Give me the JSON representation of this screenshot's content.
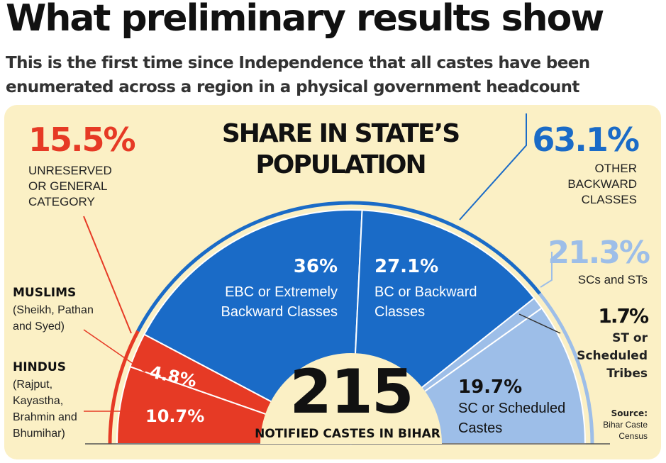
{
  "header": {
    "title": "What preliminary results show",
    "subtitle_line1": "This is the first time since Independence that all castes have been",
    "subtitle_line2": "enumerated across a region in a physical government headcount"
  },
  "chart_data": {
    "type": "pie",
    "title_line1": "SHARE IN STATE’S",
    "title_line2": "POPULATION",
    "center_value": "215",
    "center_label": "NOTIFIED CASTES IN BIHAR",
    "slices": [
      {
        "key": "hindus",
        "value": 10.7,
        "label": "10.7%",
        "color": "#e63a25"
      },
      {
        "key": "muslims",
        "value": 4.8,
        "label": "4.8%",
        "color": "#e63a25"
      },
      {
        "key": "ebc",
        "value": 36,
        "label": "36%",
        "name_line1": "EBC or Extremely",
        "name_line2": "Backward Classes",
        "color": "#1a6bc7"
      },
      {
        "key": "bc",
        "value": 27.1,
        "label": "27.1%",
        "name_line1": "BC or Backward",
        "name_line2": "Classes",
        "color": "#1a6bc7"
      },
      {
        "key": "st",
        "value": 1.7,
        "label": "",
        "color": "#9dbee8"
      },
      {
        "key": "sc",
        "value": 19.7,
        "label": "19.7%",
        "name_line1": "SC or Scheduled",
        "name_line2": "Castes",
        "color": "#9dbee8"
      }
    ],
    "groups": {
      "unreserved": {
        "value": "15.5%",
        "line1": "UNRESERVED",
        "line2": "OR GENERAL",
        "line3": "CATEGORY",
        "color": "#e63a25"
      },
      "obc": {
        "value": "63.1%",
        "line1": "OTHER",
        "line2": "BACKWARD",
        "line3": "CLASSES",
        "color": "#1a6bc7"
      },
      "scst": {
        "value": "21.3%",
        "line1": "SCs and STs",
        "color": "#9dbee8"
      }
    },
    "side_labels": {
      "muslims": {
        "title": "MUSLIMS",
        "line1": "(Sheikh, Pathan",
        "line2": "and Syed)"
      },
      "hindus": {
        "title": "HINDUS",
        "line1": "(Rajput,",
        "line2": "Kayastha,",
        "line3": "Brahmin and",
        "line4": "Bhumihar)"
      },
      "st": {
        "value": "1.7%",
        "line1": "ST or",
        "line2": "Scheduled",
        "line3": "Tribes"
      }
    },
    "source": {
      "line1": "Source:",
      "line2": "Bihar Caste",
      "line3": "Census"
    }
  }
}
